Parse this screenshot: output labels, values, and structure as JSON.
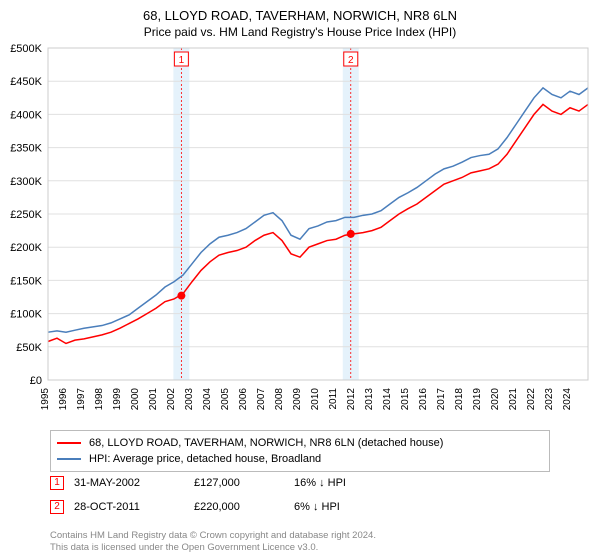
{
  "title_line1": "68, LLOYD ROAD, TAVERHAM, NORWICH, NR8 6LN",
  "title_line2": "Price paid vs. HM Land Registry's House Price Index (HPI)",
  "chart": {
    "type": "line",
    "background_color": "#ffffff",
    "grid_color": "#e0e0e0",
    "plot_border_color": "#cccccc",
    "ylabel_prefix": "£",
    "ylabel_suffix": "K",
    "ylim": [
      0,
      500000
    ],
    "ytick_step": 50000,
    "yticks": [
      "£0",
      "£50K",
      "£100K",
      "£150K",
      "£200K",
      "£250K",
      "£300K",
      "£350K",
      "£400K",
      "£450K",
      "£500K"
    ],
    "xlim": [
      1995,
      2025
    ],
    "xticks": [
      1995,
      1996,
      1997,
      1998,
      1999,
      2000,
      2001,
      2002,
      2003,
      2004,
      2005,
      2006,
      2007,
      2008,
      2009,
      2010,
      2011,
      2012,
      2013,
      2014,
      2015,
      2016,
      2017,
      2018,
      2019,
      2020,
      2021,
      2022,
      2023,
      2024
    ],
    "series": [
      {
        "name": "68, LLOYD ROAD, TAVERHAM, NORWICH, NR8 6LN (detached house)",
        "color": "#ff0000",
        "line_width": 1.5,
        "data": [
          [
            1995,
            58000
          ],
          [
            1995.5,
            63000
          ],
          [
            1996,
            55000
          ],
          [
            1996.5,
            60000
          ],
          [
            1997,
            62000
          ],
          [
            1997.5,
            65000
          ],
          [
            1998,
            68000
          ],
          [
            1998.5,
            72000
          ],
          [
            1999,
            78000
          ],
          [
            1999.5,
            85000
          ],
          [
            2000,
            92000
          ],
          [
            2000.5,
            100000
          ],
          [
            2001,
            108000
          ],
          [
            2001.5,
            118000
          ],
          [
            2002,
            122000
          ],
          [
            2002.5,
            130000
          ],
          [
            2003,
            148000
          ],
          [
            2003.5,
            165000
          ],
          [
            2004,
            178000
          ],
          [
            2004.5,
            188000
          ],
          [
            2005,
            192000
          ],
          [
            2005.5,
            195000
          ],
          [
            2006,
            200000
          ],
          [
            2006.5,
            210000
          ],
          [
            2007,
            218000
          ],
          [
            2007.5,
            222000
          ],
          [
            2008,
            210000
          ],
          [
            2008.5,
            190000
          ],
          [
            2009,
            185000
          ],
          [
            2009.5,
            200000
          ],
          [
            2010,
            205000
          ],
          [
            2010.5,
            210000
          ],
          [
            2011,
            212000
          ],
          [
            2011.5,
            218000
          ],
          [
            2012,
            220000
          ],
          [
            2012.5,
            222000
          ],
          [
            2013,
            225000
          ],
          [
            2013.5,
            230000
          ],
          [
            2014,
            240000
          ],
          [
            2014.5,
            250000
          ],
          [
            2015,
            258000
          ],
          [
            2015.5,
            265000
          ],
          [
            2016,
            275000
          ],
          [
            2016.5,
            285000
          ],
          [
            2017,
            295000
          ],
          [
            2017.5,
            300000
          ],
          [
            2018,
            305000
          ],
          [
            2018.5,
            312000
          ],
          [
            2019,
            315000
          ],
          [
            2019.5,
            318000
          ],
          [
            2020,
            325000
          ],
          [
            2020.5,
            340000
          ],
          [
            2021,
            360000
          ],
          [
            2021.5,
            380000
          ],
          [
            2022,
            400000
          ],
          [
            2022.5,
            415000
          ],
          [
            2023,
            405000
          ],
          [
            2023.5,
            400000
          ],
          [
            2024,
            410000
          ],
          [
            2024.5,
            405000
          ],
          [
            2025,
            415000
          ]
        ]
      },
      {
        "name": "HPI: Average price, detached house, Broadland",
        "color": "#4a7ebb",
        "line_width": 1.5,
        "data": [
          [
            1995,
            72000
          ],
          [
            1995.5,
            74000
          ],
          [
            1996,
            72000
          ],
          [
            1996.5,
            75000
          ],
          [
            1997,
            78000
          ],
          [
            1997.5,
            80000
          ],
          [
            1998,
            82000
          ],
          [
            1998.5,
            86000
          ],
          [
            1999,
            92000
          ],
          [
            1999.5,
            98000
          ],
          [
            2000,
            108000
          ],
          [
            2000.5,
            118000
          ],
          [
            2001,
            128000
          ],
          [
            2001.5,
            140000
          ],
          [
            2002,
            148000
          ],
          [
            2002.5,
            158000
          ],
          [
            2003,
            175000
          ],
          [
            2003.5,
            192000
          ],
          [
            2004,
            205000
          ],
          [
            2004.5,
            215000
          ],
          [
            2005,
            218000
          ],
          [
            2005.5,
            222000
          ],
          [
            2006,
            228000
          ],
          [
            2006.5,
            238000
          ],
          [
            2007,
            248000
          ],
          [
            2007.5,
            252000
          ],
          [
            2008,
            240000
          ],
          [
            2008.5,
            218000
          ],
          [
            2009,
            212000
          ],
          [
            2009.5,
            228000
          ],
          [
            2010,
            232000
          ],
          [
            2010.5,
            238000
          ],
          [
            2011,
            240000
          ],
          [
            2011.5,
            245000
          ],
          [
            2012,
            245000
          ],
          [
            2012.5,
            248000
          ],
          [
            2013,
            250000
          ],
          [
            2013.5,
            255000
          ],
          [
            2014,
            265000
          ],
          [
            2014.5,
            275000
          ],
          [
            2015,
            282000
          ],
          [
            2015.5,
            290000
          ],
          [
            2016,
            300000
          ],
          [
            2016.5,
            310000
          ],
          [
            2017,
            318000
          ],
          [
            2017.5,
            322000
          ],
          [
            2018,
            328000
          ],
          [
            2018.5,
            335000
          ],
          [
            2019,
            338000
          ],
          [
            2019.5,
            340000
          ],
          [
            2020,
            348000
          ],
          [
            2020.5,
            365000
          ],
          [
            2021,
            385000
          ],
          [
            2021.5,
            405000
          ],
          [
            2022,
            425000
          ],
          [
            2022.5,
            440000
          ],
          [
            2023,
            430000
          ],
          [
            2023.5,
            425000
          ],
          [
            2024,
            435000
          ],
          [
            2024.5,
            430000
          ],
          [
            2025,
            440000
          ]
        ]
      }
    ],
    "markers": [
      {
        "id": "1",
        "year": 2002.41,
        "price": 127000,
        "band_color": "#d0e8f8",
        "dash_color": "#ff0000"
      },
      {
        "id": "2",
        "year": 2011.82,
        "price": 220000,
        "band_color": "#d0e8f8",
        "dash_color": "#ff0000"
      }
    ]
  },
  "legend": {
    "items": [
      {
        "color": "#ff0000",
        "label": "68, LLOYD ROAD, TAVERHAM, NORWICH, NR8 6LN (detached house)"
      },
      {
        "color": "#4a7ebb",
        "label": "HPI: Average price, detached house, Broadland"
      }
    ]
  },
  "transactions": [
    {
      "marker": "1",
      "date": "31-MAY-2002",
      "price": "£127,000",
      "hpi": "16% ↓ HPI"
    },
    {
      "marker": "2",
      "date": "28-OCT-2011",
      "price": "£220,000",
      "hpi": "6% ↓ HPI"
    }
  ],
  "footnote_line1": "Contains HM Land Registry data © Crown copyright and database right 2024.",
  "footnote_line2": "This data is licensed under the Open Government Licence v3.0."
}
